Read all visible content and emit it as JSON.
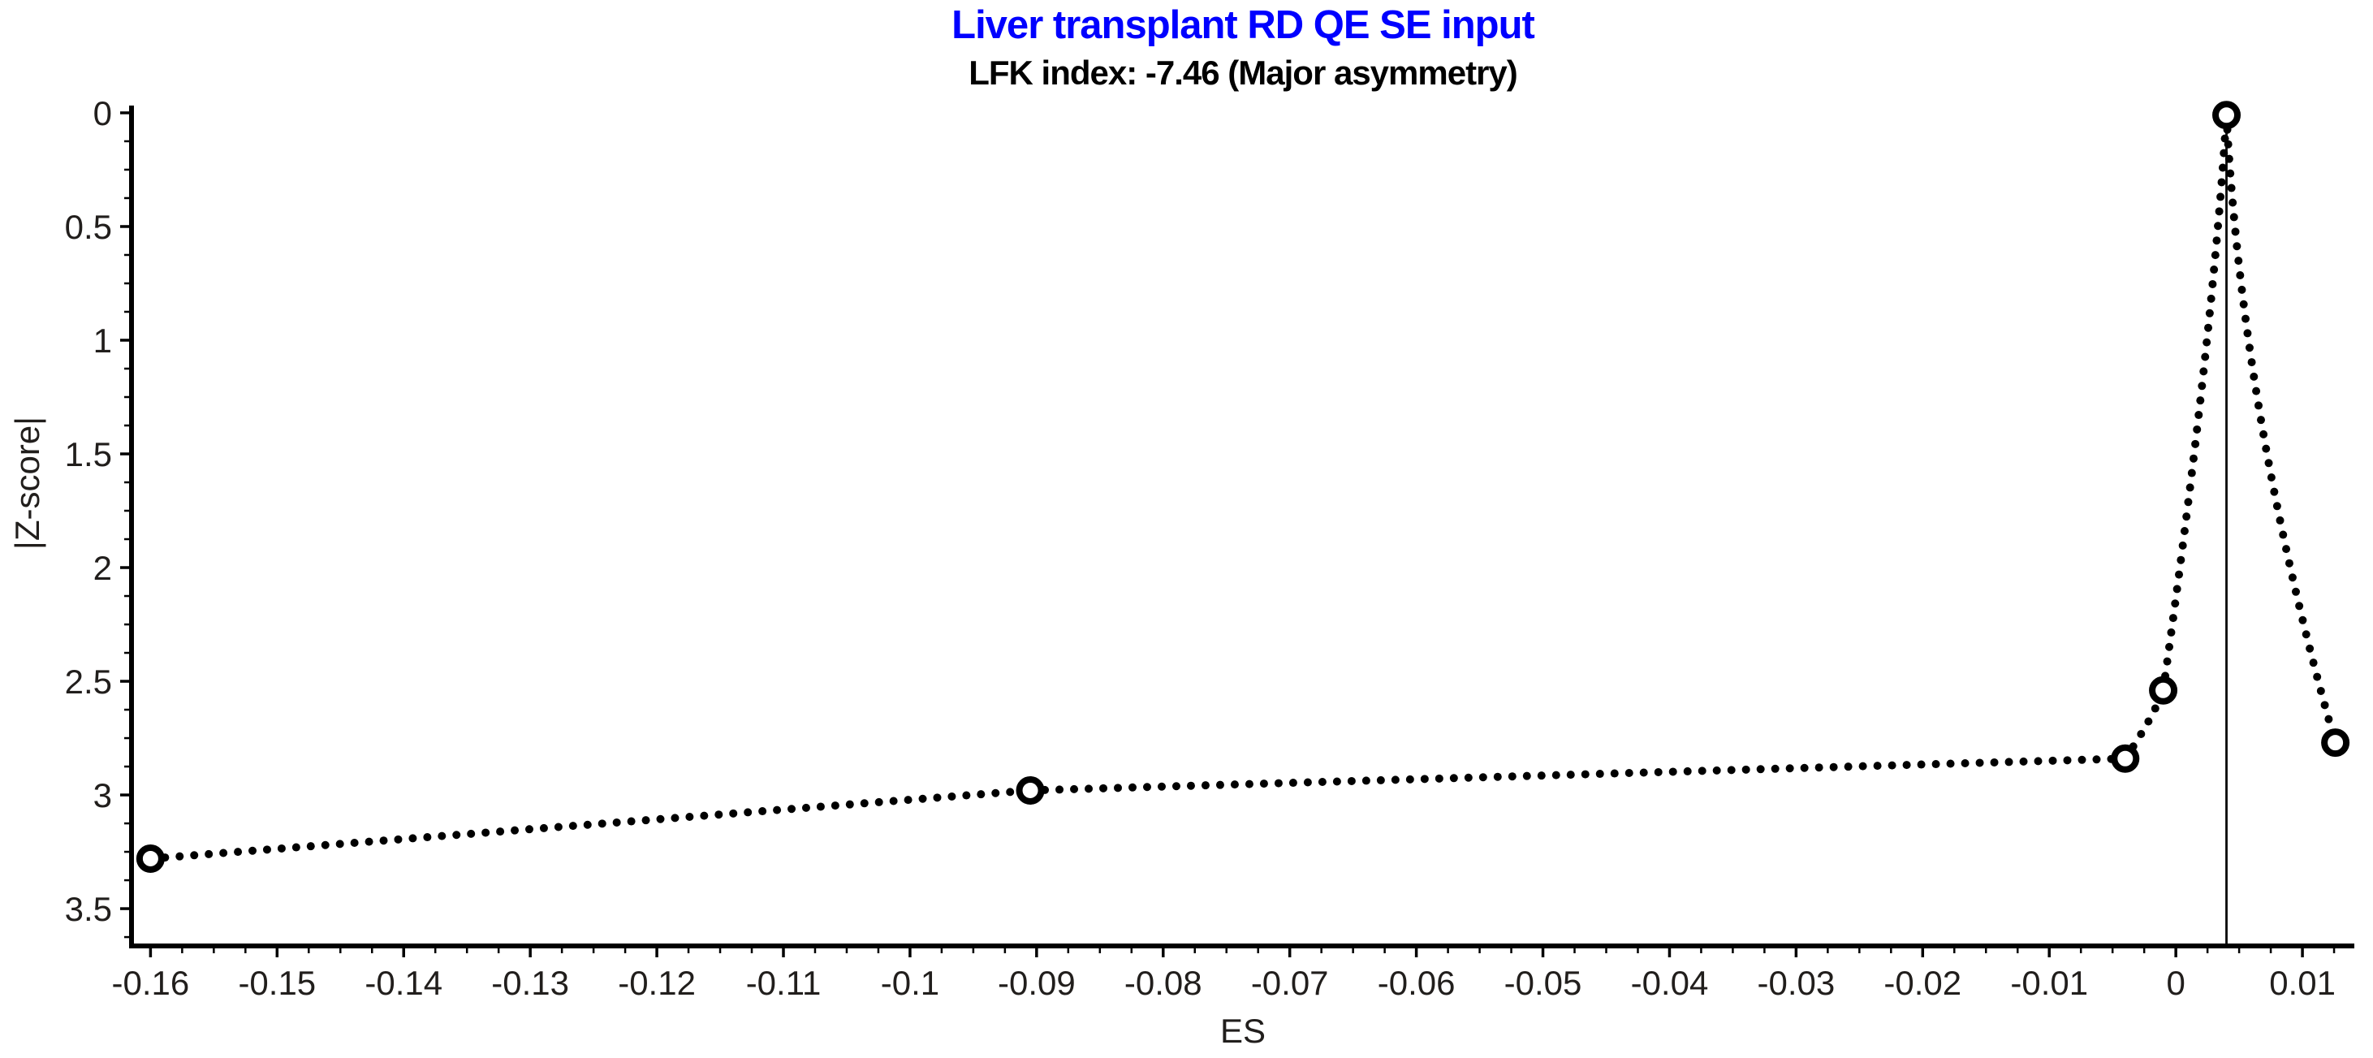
{
  "page": {
    "background": "#ffffff"
  },
  "chart_data": {
    "type": "scatter",
    "variant": "doi-plot",
    "title": "Liver transplant RD QE SE input",
    "subtitle": "LFK index: -7.46 (Major asymmetry)",
    "xlabel": "ES",
    "ylabel": "|Z-score|",
    "colors": {
      "title": "#0000ff",
      "subtitle": "#000000",
      "axis": "#000000",
      "dots": "#000000",
      "tick_text": "#211e1c",
      "background": "#ffffff"
    },
    "x_axis": {
      "min": -0.1615,
      "max": 0.0141,
      "major_ticks": [
        {
          "v": -0.16,
          "label": "-0.16"
        },
        {
          "v": -0.15,
          "label": "-0.15"
        },
        {
          "v": -0.14,
          "label": "-0.14"
        },
        {
          "v": -0.13,
          "label": "-0.13"
        },
        {
          "v": -0.12,
          "label": "-0.12"
        },
        {
          "v": -0.11,
          "label": "-0.11"
        },
        {
          "v": -0.1,
          "label": "-0.1"
        },
        {
          "v": -0.09,
          "label": "-0.09"
        },
        {
          "v": -0.08,
          "label": "-0.08"
        },
        {
          "v": -0.07,
          "label": "-0.07"
        },
        {
          "v": -0.06,
          "label": "-0.06"
        },
        {
          "v": -0.05,
          "label": "-0.05"
        },
        {
          "v": -0.04,
          "label": "-0.04"
        },
        {
          "v": -0.03,
          "label": "-0.03"
        },
        {
          "v": -0.02,
          "label": "-0.02"
        },
        {
          "v": -0.01,
          "label": "-0.01"
        },
        {
          "v": 0,
          "label": "0"
        },
        {
          "v": 0.01,
          "label": "0.01"
        }
      ],
      "minor_ticks": {
        "start": -0.16,
        "step": 0.0025,
        "count": 70,
        "majors_every": 4
      }
    },
    "y_axis": {
      "min": -0.032,
      "max": 3.664,
      "inverted": true,
      "major_ticks": [
        {
          "v": 0,
          "label": "0"
        },
        {
          "v": 0.5,
          "label": "0.5"
        },
        {
          "v": 1,
          "label": "1"
        },
        {
          "v": 1.5,
          "label": "1.5"
        },
        {
          "v": 2,
          "label": "2"
        },
        {
          "v": 2.5,
          "label": "2.5"
        },
        {
          "v": 3,
          "label": "3"
        },
        {
          "v": 3.5,
          "label": "3.5"
        }
      ],
      "minor_ticks": {
        "start": 0,
        "step": 0.125,
        "count": 30,
        "majors_every": 4
      }
    },
    "study_points": [
      {
        "es": -0.16,
        "abs_z": 3.28
      },
      {
        "es": -0.0905,
        "abs_z": 2.98
      },
      {
        "es": -0.004,
        "abs_z": 2.84
      },
      {
        "es": -0.001,
        "abs_z": 2.54
      },
      {
        "es": 0.004,
        "abs_z": 0.01
      },
      {
        "es": 0.0126,
        "abs_z": 2.77
      }
    ],
    "curve_segments": [
      {
        "from": 0,
        "to": 1
      },
      {
        "from": 1,
        "to": 2
      },
      {
        "from": 2,
        "to": 3,
        "ctrl": {
          "es": -0.0018,
          "abs_z": 2.66
        }
      },
      {
        "from": 3,
        "to": 4,
        "ctrl": {
          "es": 0.0028,
          "abs_z": 1.04
        }
      },
      {
        "from": 4,
        "to": 5,
        "ctrl": {
          "es": 0.0053,
          "abs_z": 1.36
        }
      }
    ],
    "vertical_line_x": 0.004
  }
}
